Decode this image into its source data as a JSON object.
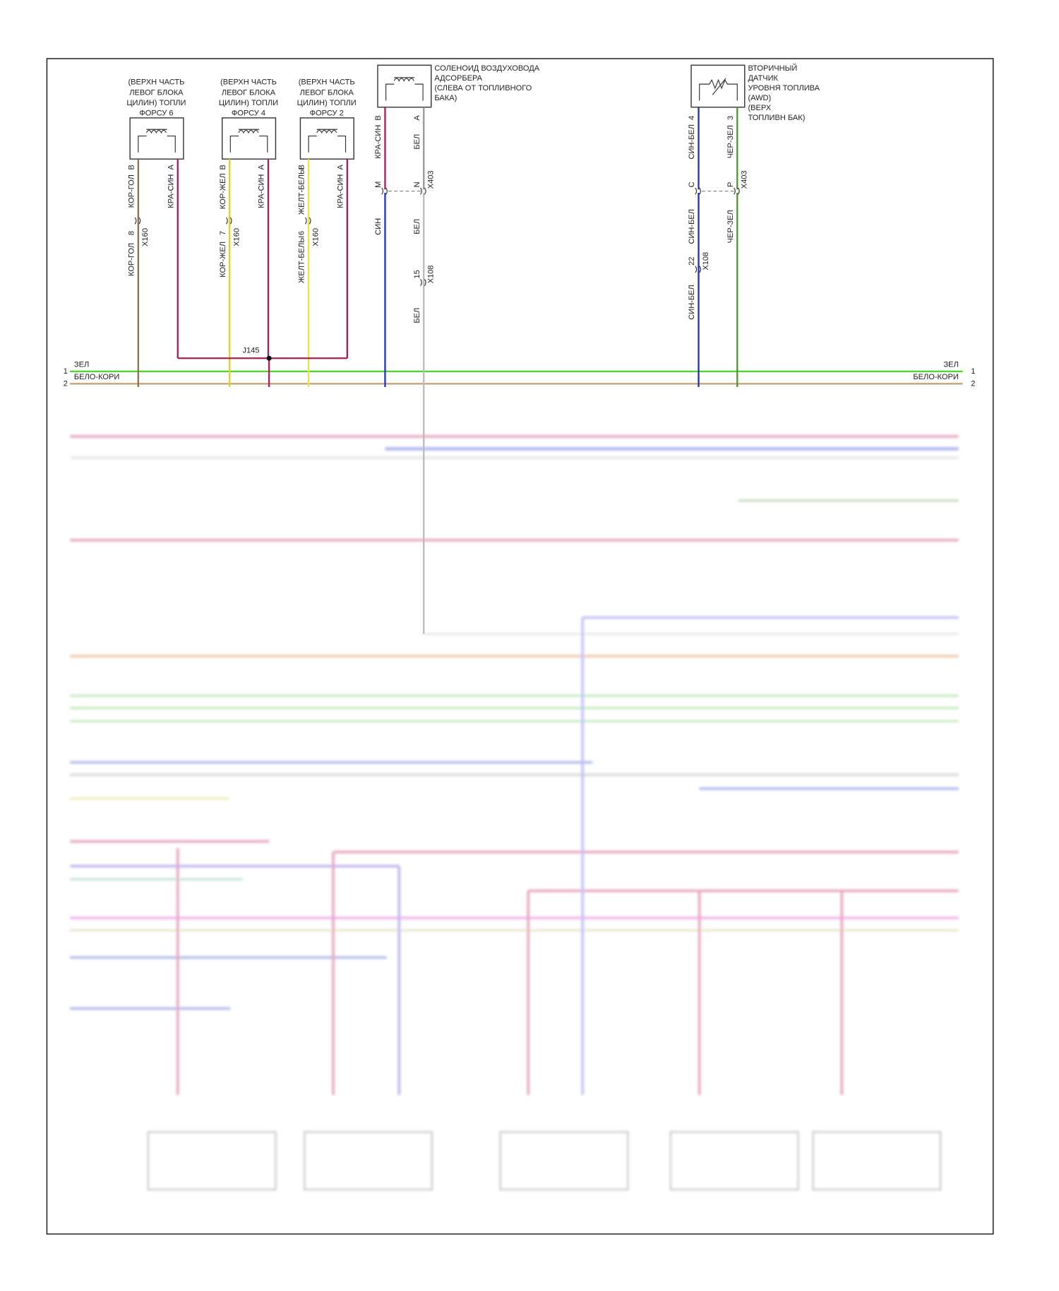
{
  "injectors": [
    {
      "label": [
        "(ВЕРХН ЧАСТЬ",
        "ЛЕВОГ БЛОКА",
        "ЦИЛИН) ТОПЛИ",
        "ФОРСУ 6"
      ],
      "pin_b": "B",
      "pin_a": "A",
      "wire_b": "КОР-ГОЛ",
      "wire_a": "КРА-СИН",
      "connector": "X160",
      "connector_pin": "8",
      "wire_below": "КОР-ГОЛ"
    },
    {
      "label": [
        "(ВЕРХН ЧАСТЬ",
        "ЛЕВОГ БЛОКА",
        "ЦИЛИН) ТОПЛИ",
        "ФОРСУ 4"
      ],
      "pin_b": "B",
      "pin_a": "A",
      "wire_b": "КОР-ЖЕЛ",
      "wire_a": "КРА-СИН",
      "connector": "X160",
      "connector_pin": "7",
      "wire_below": "КОР-ЖЕЛ"
    },
    {
      "label": [
        "(ВЕРХН ЧАСТЬ",
        "ЛЕВОГ БЛОКА",
        "ЦИЛИН) ТОПЛИ",
        "ФОРСУ 2"
      ],
      "pin_b": "B",
      "pin_a": "A",
      "wire_b": "ЖЕЛТ-БЕЛЫ",
      "wire_a": "КРА-СИН",
      "connector": "X160",
      "connector_pin": "6",
      "wire_below": "ЖЕЛТ-БЕЛЫ"
    }
  ],
  "splice": "J145",
  "solenoid": {
    "label": [
      "СОЛЕНОИД ВОЗДУХОВОДА",
      "АДСОРБЕРА",
      "(СЛЕВА ОТ ТОПЛИВНОГО",
      "БАКА)"
    ],
    "pin_b": "B",
    "pin_a": "A",
    "wire_b": "КРА-СИН",
    "wire_a": "БЕЛ",
    "connector": "X403",
    "connector_pin_b": "M",
    "connector_pin_a": "N",
    "wire_b_below": "СИН",
    "wire_a_below": "БЕЛ",
    "connector2": "X108",
    "connector2_pin": "15",
    "wire_bottom": "БЕЛ"
  },
  "sensor": {
    "label": [
      "ВТОРИЧНЫЙ",
      "ДАТЧИК",
      "УРОВНЯ ТОПЛИВА",
      "(AWD)",
      "(ВЕРХ",
      "ТОПЛИВН БАК)"
    ],
    "pin_b": "4",
    "pin_a": "3",
    "wire_b": "СИН-БЕЛ",
    "wire_a": "ЧЕР-ЗЕЛ",
    "connector": "X403",
    "connector_pin_b": "C",
    "connector_pin_a": "P",
    "wire_b_below": "СИН-БЕЛ",
    "wire_a_below": "ЧЕР-ЗЕЛ",
    "connector2": "X108",
    "connector2_pin": "22",
    "wire_bottom": "СИН-БЕЛ"
  },
  "bus": [
    {
      "number": "1",
      "name": "ЗЕЛ"
    },
    {
      "number": "2",
      "name": "БЕЛО-КОРИ"
    }
  ]
}
